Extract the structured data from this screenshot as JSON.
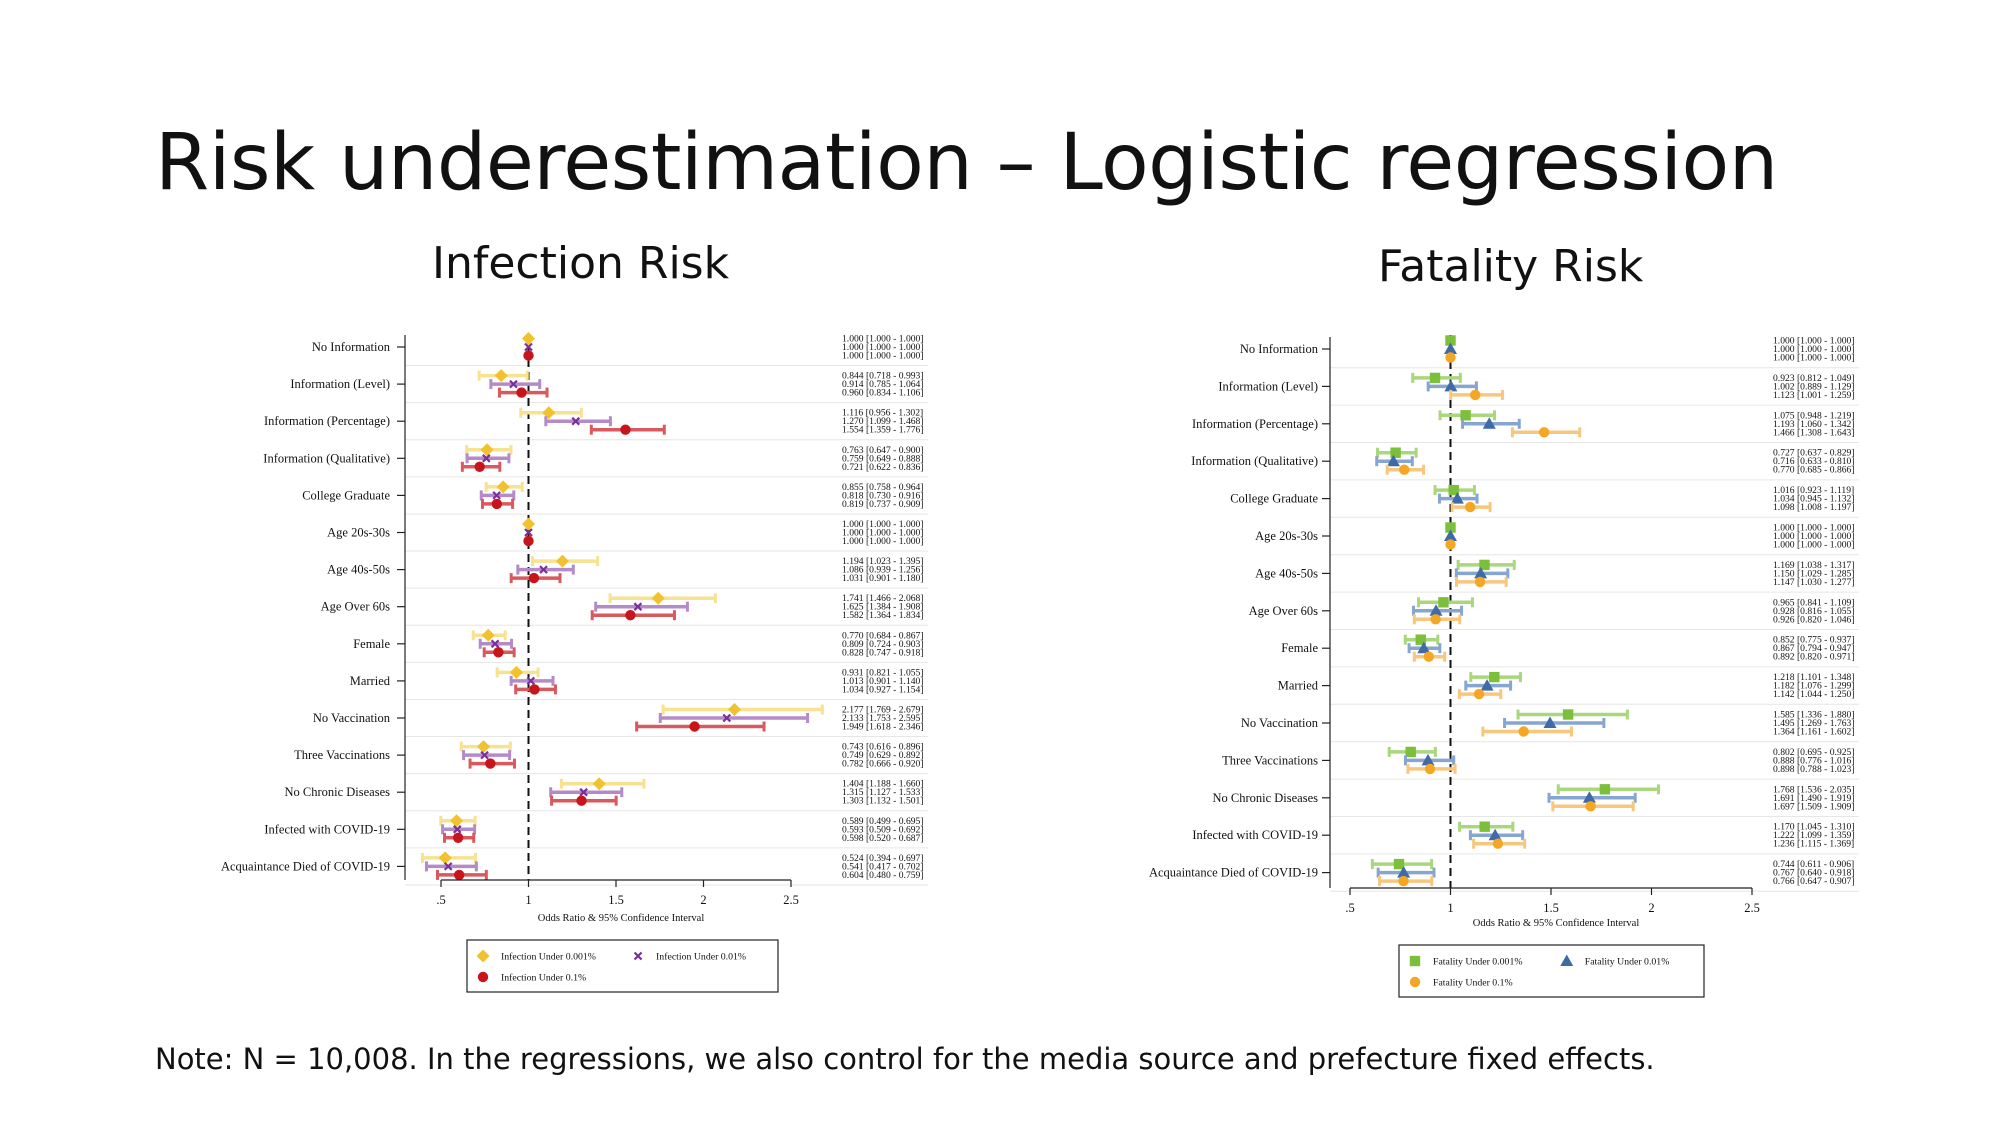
{
  "slide": {
    "title": "Risk underestimation – Logistic regression",
    "note": "Note: N = 10,008. In the regressions, we also control for the media source and prefecture fixed effects."
  },
  "chart_data": [
    {
      "type": "forest",
      "title": "Infection Risk",
      "xlabel": "Odds Ratio & 95% Confidence Interval",
      "xlim": [
        0.5,
        2.5
      ],
      "xticks": [
        0.5,
        1,
        1.5,
        2,
        2.5
      ],
      "xtick_labels": [
        ".5",
        "1",
        "1.5",
        "2",
        "2.5"
      ],
      "reference_line": 1,
      "legend_position": "bottom",
      "categories": [
        "No Information",
        "Information (Level)",
        "Information (Percentage)",
        "Information (Qualitative)",
        "College Graduate",
        "Age 20s-30s",
        "Age 40s-50s",
        "Age Over 60s",
        "Female",
        "Married",
        "No Vaccination",
        "Three Vaccinations",
        "No Chronic Diseases",
        "Infected with COVID-19",
        "Acquaintance Died of COVID-19"
      ],
      "series": [
        {
          "name": "Infection Under 0.001%",
          "marker": "diamond",
          "marker_color": "#f2c12e",
          "ci_color": "#f7e291",
          "or": [
            1.0,
            0.844,
            1.116,
            0.763,
            0.855,
            1.0,
            1.194,
            1.741,
            0.77,
            0.931,
            2.177,
            0.743,
            1.404,
            0.589,
            0.524
          ],
          "lo": [
            1.0,
            0.718,
            0.956,
            0.647,
            0.758,
            1.0,
            1.023,
            1.466,
            0.684,
            0.821,
            1.769,
            0.616,
            1.188,
            0.499,
            0.394
          ],
          "hi": [
            1.0,
            0.993,
            1.302,
            0.9,
            0.964,
            1.0,
            1.395,
            2.068,
            0.867,
            1.055,
            2.679,
            0.896,
            1.66,
            0.695,
            0.697
          ],
          "labels": [
            "1.000 [1.000 - 1.000]",
            "0.844 [0.718 - 0.993]",
            "1.116 [0.956 - 1.302]",
            "0.763 [0.647 - 0.900]",
            "0.855 [0.758 - 0.964]",
            "1.000 [1.000 - 1.000]",
            "1.194 [1.023 - 1.395]",
            "1.741 [1.466 - 2.068]",
            "0.770 [0.684 - 0.867]",
            "0.931 [0.821 - 1.055]",
            "2.177 [1.769 - 2.679]",
            "0.743 [0.616 - 0.896]",
            "1.404 [1.188 - 1.660]",
            "0.589 [0.499 - 0.695]",
            "0.524 [0.394 - 0.697]"
          ]
        },
        {
          "name": "Infection Under 0.01%",
          "marker": "x",
          "marker_color": "#7a2f9e",
          "ci_color": "#b48ac8",
          "or": [
            1.0,
            0.914,
            1.27,
            0.759,
            0.818,
            1.0,
            1.086,
            1.625,
            0.809,
            1.013,
            2.133,
            0.749,
            1.315,
            0.593,
            0.541
          ],
          "lo": [
            1.0,
            0.785,
            1.099,
            0.649,
            0.73,
            1.0,
            0.939,
            1.384,
            0.724,
            0.901,
            1.753,
            0.629,
            1.127,
            0.509,
            0.417
          ],
          "hi": [
            1.0,
            1.064,
            1.468,
            0.888,
            0.916,
            1.0,
            1.256,
            1.908,
            0.903,
            1.14,
            2.595,
            0.892,
            1.533,
            0.692,
            0.702
          ],
          "labels": [
            "1.000 [1.000 - 1.000]",
            "0.914 [0.785 - 1.064]",
            "1.270 [1.099 - 1.468]",
            "0.759 [0.649 - 0.888]",
            "0.818 [0.730 - 0.916]",
            "1.000 [1.000 - 1.000]",
            "1.086 [0.939 - 1.256]",
            "1.625 [1.384 - 1.908]",
            "0.809 [0.724 - 0.903]",
            "1.013 [0.901 - 1.140]",
            "2.133 [1.753 - 2.595]",
            "0.749 [0.629 - 0.892]",
            "1.315 [1.127 - 1.533]",
            "0.593 [0.509 - 0.692]",
            "0.541 [0.417 - 0.702]"
          ]
        },
        {
          "name": "Infection Under 0.1%",
          "marker": "circle",
          "marker_color": "#c8151b",
          "ci_color": "#d95a5e",
          "or": [
            1.0,
            0.96,
            1.554,
            0.721,
            0.819,
            1.0,
            1.031,
            1.582,
            0.828,
            1.034,
            1.949,
            0.782,
            1.303,
            0.598,
            0.604
          ],
          "lo": [
            1.0,
            0.834,
            1.359,
            0.622,
            0.737,
            1.0,
            0.901,
            1.364,
            0.747,
            0.927,
            1.618,
            0.666,
            1.132,
            0.52,
            0.48
          ],
          "hi": [
            1.0,
            1.106,
            1.776,
            0.836,
            0.909,
            1.0,
            1.18,
            1.834,
            0.918,
            1.154,
            2.346,
            0.92,
            1.501,
            0.687,
            0.759
          ],
          "labels": [
            "1.000 [1.000 - 1.000]",
            "0.960 [0.834 - 1.106]",
            "1.554 [1.359 - 1.776]",
            "0.721 [0.622 - 0.836]",
            "0.819 [0.737 - 0.909]",
            "1.000 [1.000 - 1.000]",
            "1.031 [0.901 - 1.180]",
            "1.582 [1.364 - 1.834]",
            "0.828 [0.747 - 0.918]",
            "1.034 [0.927 - 1.154]",
            "1.949 [1.618 - 2.346]",
            "0.782 [0.666 - 0.920]",
            "1.303 [1.132 - 1.501]",
            "0.598 [0.520 - 0.687]",
            "0.604 [0.480 - 0.759]"
          ]
        }
      ]
    },
    {
      "type": "forest",
      "title": "Fatality Risk",
      "xlabel": "Odds Ratio & 95% Confidence Interval",
      "xlim": [
        0.5,
        2.5
      ],
      "xticks": [
        0.5,
        1,
        1.5,
        2,
        2.5
      ],
      "xtick_labels": [
        ".5",
        "1",
        "1.5",
        "2",
        "2.5"
      ],
      "reference_line": 1,
      "legend_position": "bottom",
      "categories": [
        "No Information",
        "Information (Level)",
        "Information (Percentage)",
        "Information (Qualitative)",
        "College Graduate",
        "Age 20s-30s",
        "Age 40s-50s",
        "Age Over 60s",
        "Female",
        "Married",
        "No Vaccination",
        "Three Vaccinations",
        "No Chronic Diseases",
        "Infected with COVID-19",
        "Acquaintance Died of COVID-19"
      ],
      "series": [
        {
          "name": "Fatality Under 0.001%",
          "marker": "square",
          "marker_color": "#7bbf3b",
          "ci_color": "#a9d77c",
          "or": [
            1.0,
            0.923,
            1.075,
            0.727,
            1.016,
            1.0,
            1.169,
            0.965,
            0.852,
            1.218,
            1.585,
            0.802,
            1.768,
            1.17,
            0.744
          ],
          "lo": [
            1.0,
            0.812,
            0.948,
            0.637,
            0.923,
            1.0,
            1.038,
            0.841,
            0.775,
            1.101,
            1.336,
            0.695,
            1.536,
            1.045,
            0.611
          ],
          "hi": [
            1.0,
            1.049,
            1.219,
            0.829,
            1.119,
            1.0,
            1.317,
            1.109,
            0.937,
            1.348,
            1.88,
            0.925,
            2.035,
            1.31,
            0.906
          ],
          "labels": [
            "1.000 [1.000 - 1.000]",
            "0.923 [0.812 - 1.049]",
            "1.075 [0.948 - 1.219]",
            "0.727 [0.637 - 0.829]",
            "1.016 [0.923 - 1.119]",
            "1.000 [1.000 - 1.000]",
            "1.169 [1.038 - 1.317]",
            "0.965 [0.841 - 1.109]",
            "0.852 [0.775 - 0.937]",
            "1.218 [1.101 - 1.348]",
            "1.585 [1.336 - 1.880]",
            "0.802 [0.695 - 0.925]",
            "1.768 [1.536 - 2.035]",
            "1.170 [1.045 - 1.310]",
            "0.744 [0.611 - 0.906]"
          ]
        },
        {
          "name": "Fatality Under 0.01%",
          "marker": "triangle",
          "marker_color": "#3e6aa8",
          "ci_color": "#86a6d2",
          "or": [
            1.0,
            1.002,
            1.193,
            0.716,
            1.034,
            1.0,
            1.15,
            0.928,
            0.867,
            1.182,
            1.495,
            0.888,
            1.691,
            1.222,
            0.767
          ],
          "lo": [
            1.0,
            0.889,
            1.06,
            0.633,
            0.945,
            1.0,
            1.029,
            0.816,
            0.794,
            1.076,
            1.269,
            0.776,
            1.49,
            1.099,
            0.64
          ],
          "hi": [
            1.0,
            1.129,
            1.342,
            0.81,
            1.132,
            1.0,
            1.285,
            1.055,
            0.947,
            1.299,
            1.763,
            1.016,
            1.919,
            1.359,
            0.918
          ],
          "labels": [
            "1.000 [1.000 - 1.000]",
            "1.002 [0.889 - 1.129]",
            "1.193 [1.060 - 1.342]",
            "0.716 [0.633 - 0.810]",
            "1.034 [0.945 - 1.132]",
            "1.000 [1.000 - 1.000]",
            "1.150 [1.029 - 1.285]",
            "0.928 [0.816 - 1.055]",
            "0.867 [0.794 - 0.947]",
            "1.182 [1.076 - 1.299]",
            "1.495 [1.269 - 1.763]",
            "0.888 [0.776 - 1.016]",
            "1.691 [1.490 - 1.919]",
            "1.222 [1.099 - 1.359]",
            "0.767 [0.640 - 0.918]"
          ]
        },
        {
          "name": "Fatality Under 0.1%",
          "marker": "circle",
          "marker_color": "#f5a623",
          "ci_color": "#f8c77e",
          "or": [
            1.0,
            1.123,
            1.466,
            0.77,
            1.098,
            1.0,
            1.147,
            0.926,
            0.892,
            1.142,
            1.364,
            0.898,
            1.697,
            1.236,
            0.766
          ],
          "lo": [
            1.0,
            1.001,
            1.308,
            0.685,
            1.008,
            1.0,
            1.03,
            0.82,
            0.82,
            1.044,
            1.161,
            0.788,
            1.509,
            1.115,
            0.647
          ],
          "hi": [
            1.0,
            1.259,
            1.643,
            0.866,
            1.197,
            1.0,
            1.277,
            1.046,
            0.971,
            1.25,
            1.602,
            1.023,
            1.909,
            1.369,
            0.907
          ],
          "labels": [
            "1.000 [1.000 - 1.000]",
            "1.123 [1.001 - 1.259]",
            "1.466 [1.308 - 1.643]",
            "0.770 [0.685 - 0.866]",
            "1.098 [1.008 - 1.197]",
            "1.000 [1.000 - 1.000]",
            "1.147 [1.030 - 1.277]",
            "0.926 [0.820 - 1.046]",
            "0.892 [0.820 - 0.971]",
            "1.142 [1.044 - 1.250]",
            "1.364 [1.161 - 1.602]",
            "0.898 [0.788 - 1.023]",
            "1.697 [1.509 - 1.909]",
            "1.236 [1.115 - 1.369]",
            "0.766 [0.647 - 0.907]"
          ]
        }
      ]
    }
  ]
}
